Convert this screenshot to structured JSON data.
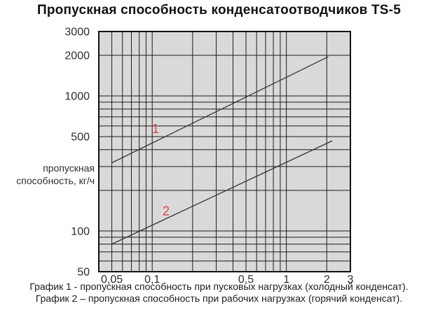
{
  "chart_data": {
    "type": "line",
    "title": "Пропускная способность конденсатоотводчиков TS-5",
    "ylabel": "пропускная\nспособность, кг/ч",
    "xlabel": "",
    "grid": true,
    "x_axis": {
      "scale": "log",
      "lim": [
        0.04,
        3
      ],
      "gridlines": [
        0.04,
        0.05,
        0.06,
        0.07,
        0.08,
        0.09,
        0.1,
        0.2,
        0.3,
        0.4,
        0.5,
        0.6,
        0.7,
        0.8,
        0.9,
        1,
        2,
        3
      ],
      "ticks": [
        {
          "value": 0.05,
          "label": "0,05"
        },
        {
          "value": 0.1,
          "label": "0,1"
        },
        {
          "value": 0.5,
          "label": "0,5"
        },
        {
          "value": 1,
          "label": "1"
        },
        {
          "value": 2,
          "label": "2"
        },
        {
          "value": 3,
          "label": "3"
        }
      ]
    },
    "y_axis": {
      "scale": "log",
      "lim": [
        50,
        3000
      ],
      "gridlines": [
        50,
        60,
        70,
        80,
        90,
        100,
        200,
        300,
        400,
        500,
        600,
        700,
        800,
        900,
        1000,
        2000,
        3000
      ],
      "ticks": [
        {
          "value": 3000,
          "label": "3000"
        },
        {
          "value": 2000,
          "label": "2000"
        },
        {
          "value": 1000,
          "label": "1000"
        },
        {
          "value": 500,
          "label": "500"
        },
        {
          "value": 100,
          "label": "100"
        },
        {
          "value": 50,
          "label": "50"
        }
      ]
    },
    "series": [
      {
        "name": "График 1",
        "label": "1",
        "points": [
          [
            0.05,
            320
          ],
          [
            2.05,
            1950
          ]
        ],
        "label_pos": [
          0.106,
          570
        ]
      },
      {
        "name": "График 2",
        "label": "2",
        "points": [
          [
            0.05,
            80
          ],
          [
            2.2,
            466
          ]
        ],
        "label_pos": [
          0.127,
          140
        ]
      }
    ],
    "colors": {
      "plot_bg": "#d9d9d9",
      "grid": "#1c1c1c",
      "border": "#111111",
      "series": "#333333",
      "series_label": "#e2403f",
      "text": "#2e2e2e",
      "title": "#111111"
    }
  },
  "captions": [
    "График 1 - пропускная способность при пусковых нагрузках (холодный конденсат).",
    "График 2 – пропускная способность при рабочих нагрузках (горячий конденсат)."
  ]
}
